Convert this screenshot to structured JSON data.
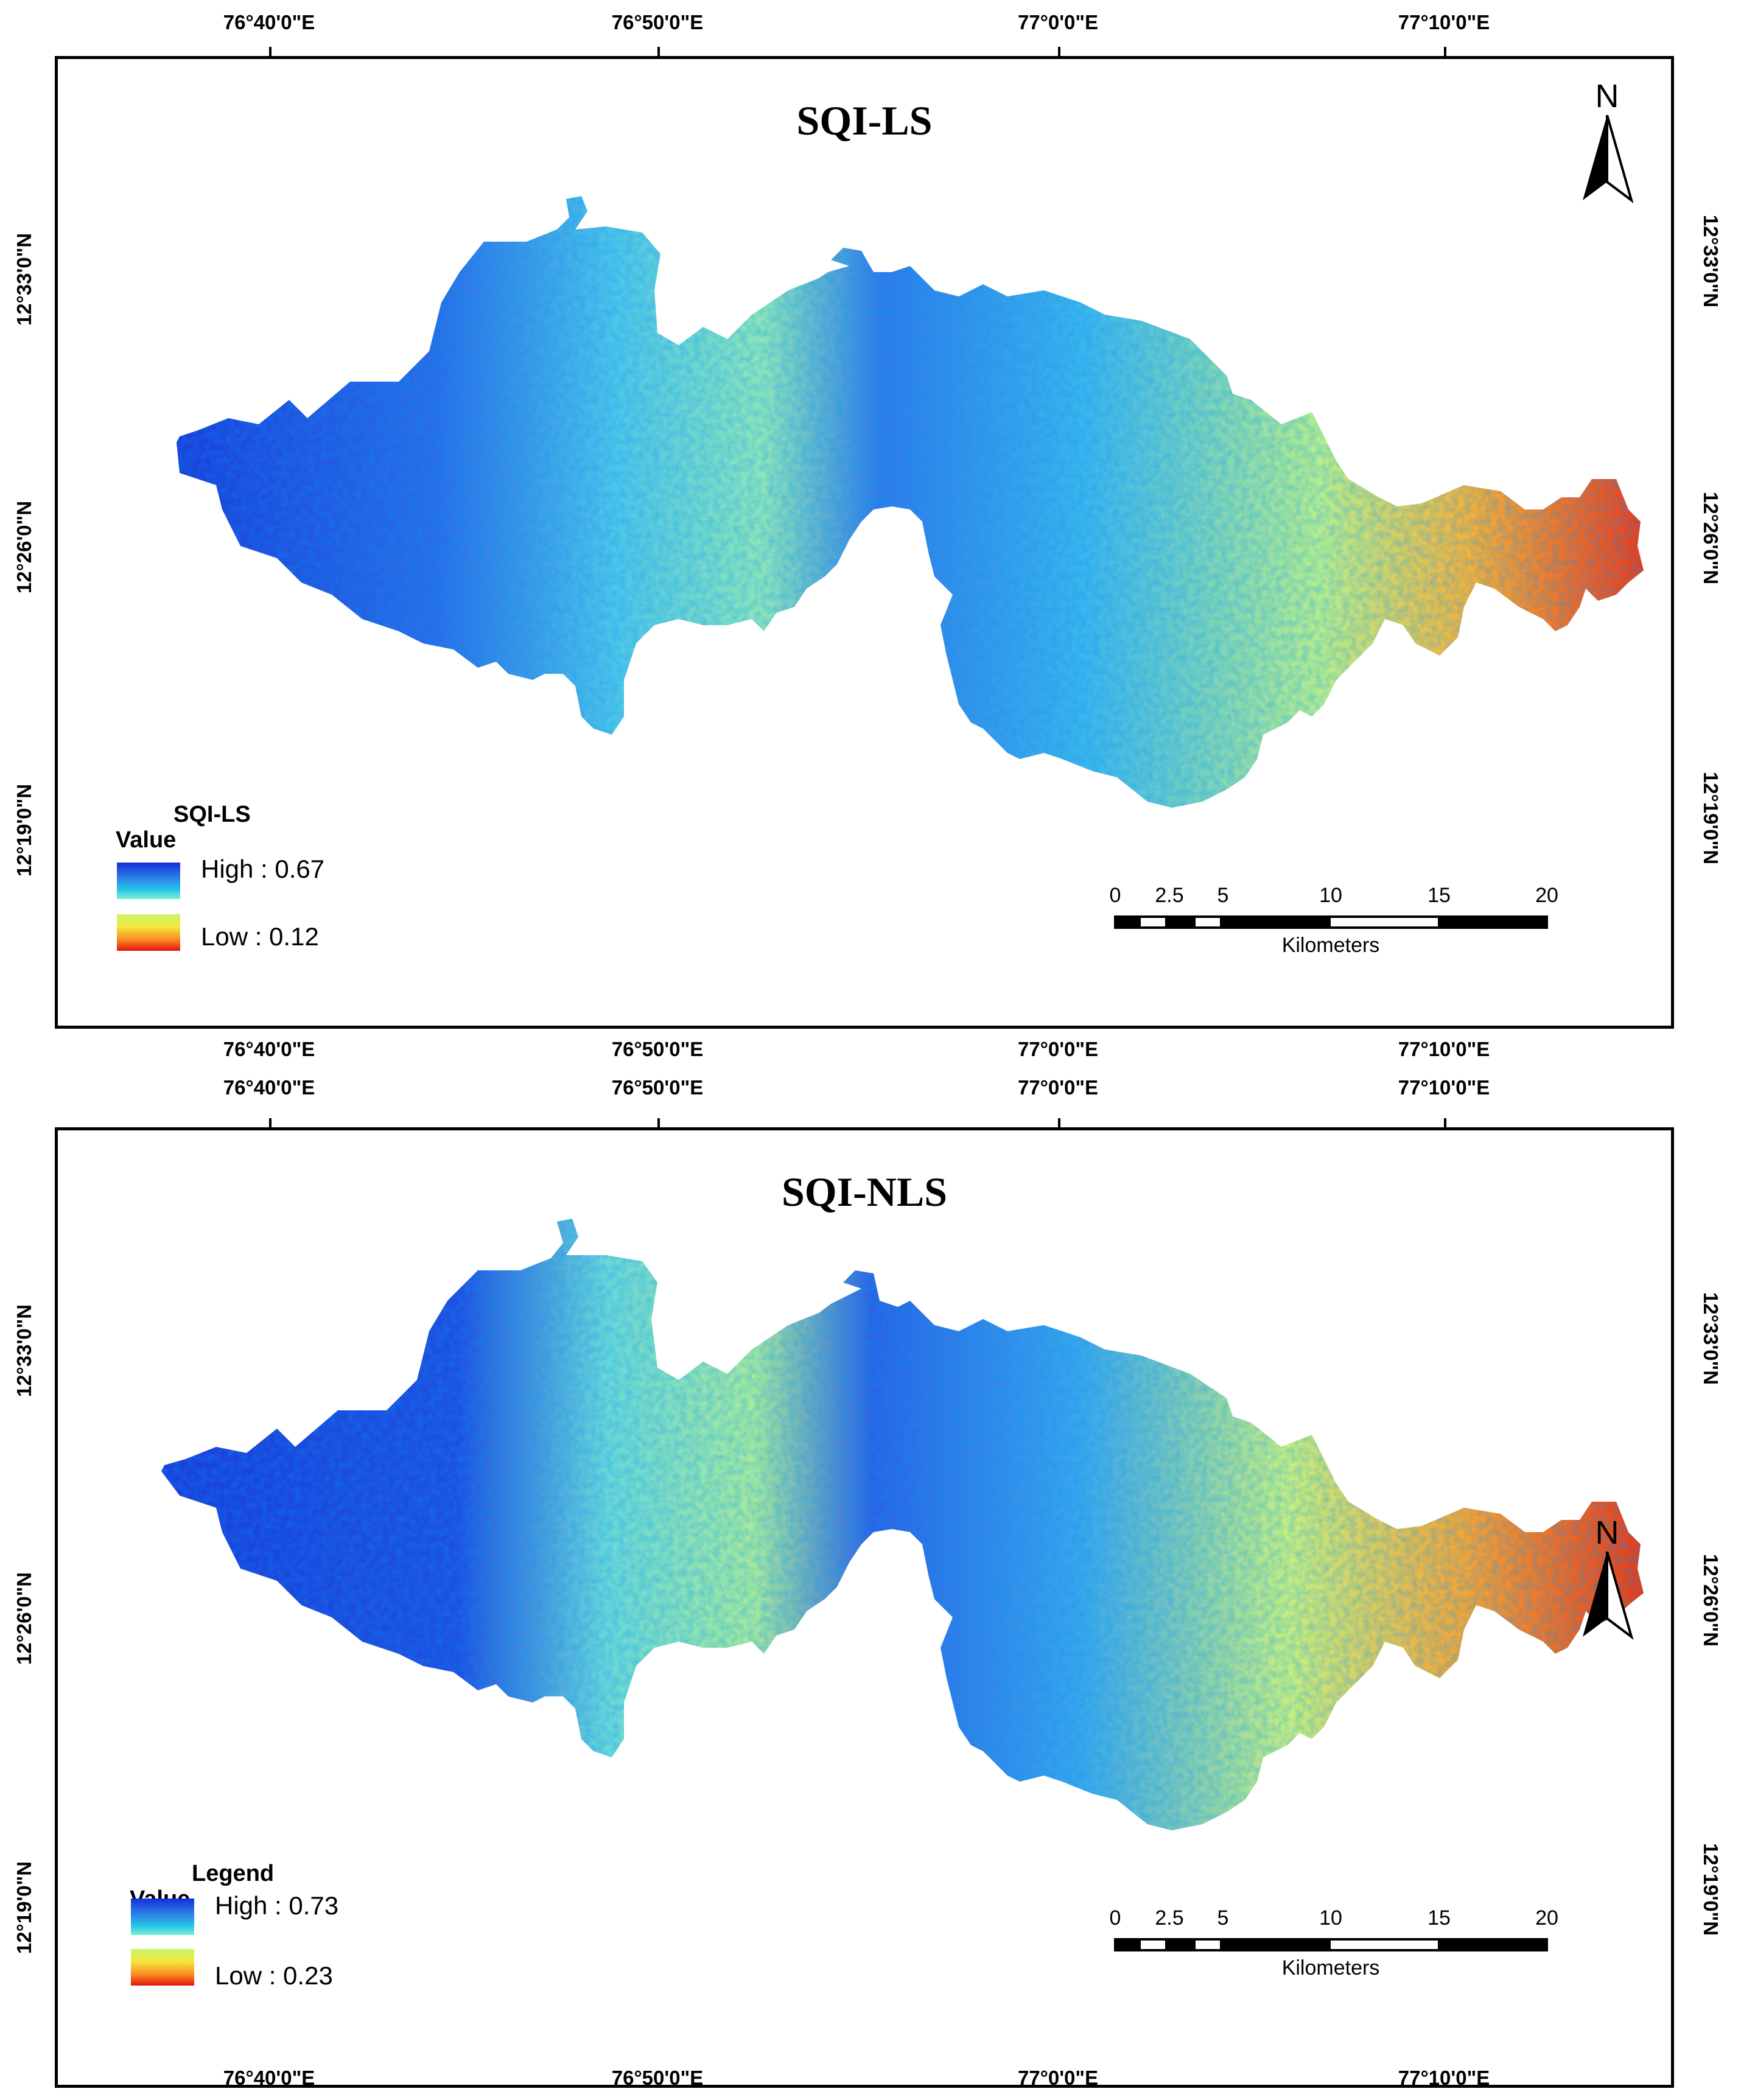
{
  "panels": [
    {
      "title": "SQI-LS",
      "legend_title": "SQI-LS",
      "legend_value_label": "Value",
      "high_label": "High : 0.67",
      "low_label": "Low : 0.12",
      "x_ticks": [
        "76°40'0\"E",
        "76°50'0\"E",
        "77°0'0\"E",
        "77°10'0\"E"
      ],
      "y_ticks": [
        "12°33'0\"N",
        "12°26'0\"N",
        "12°19'0\"N"
      ],
      "north_label": "N",
      "scale_labels": [
        "0",
        "2.5",
        "5",
        "10",
        "15",
        "20"
      ],
      "scale_unit": "Kilometers"
    },
    {
      "title": "SQI-NLS",
      "legend_title": "Legend",
      "legend_value_label": "Value",
      "high_label": "High : 0.73",
      "low_label": "Low : 0.23",
      "x_ticks": [
        "76°40'0\"E",
        "76°50'0\"E",
        "77°0'0\"E",
        "77°10'0\"E"
      ],
      "y_ticks": [
        "12°33'0\"N",
        "12°26'0\"N",
        "12°19'0\"N"
      ],
      "north_label": "N",
      "scale_labels": [
        "0",
        "2.5",
        "5",
        "10",
        "15",
        "20"
      ],
      "scale_unit": "Kilometers"
    }
  ],
  "colors": {
    "high": "#1330d8",
    "mid": "#25c6e6",
    "yellow": "#f5e53c",
    "low": "#e5120e"
  }
}
